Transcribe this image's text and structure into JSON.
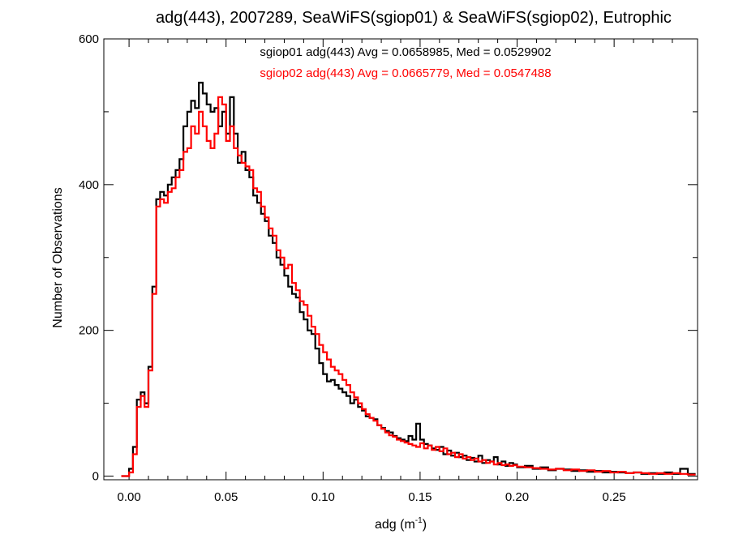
{
  "chart_data": {
    "type": "histogram-step",
    "title": "adg(443), 2007289, SeaWiFS(sgiop01) & SeaWiFS(sgiop02), Eutrophic",
    "xlabel": "adg (m",
    "xlabel_sup": "-1",
    "xlabel_close": ")",
    "ylabel": "Number of Observations",
    "xlim": [
      -0.013,
      0.293
    ],
    "ylim": [
      -5,
      600
    ],
    "xticks": [
      0.0,
      0.05,
      0.1,
      0.15,
      0.2,
      0.25
    ],
    "xtick_labels": [
      "0.00",
      "0.05",
      "0.10",
      "0.15",
      "0.20",
      "0.25"
    ],
    "yticks": [
      0,
      200,
      400,
      600
    ],
    "ytick_labels": [
      "0",
      "200",
      "400",
      "600"
    ],
    "grid": false,
    "legend_placement": "top-center",
    "series": [
      {
        "name": "sgiop01",
        "color": "#000000",
        "legend_text": "sgiop01 adg(443) Avg = 0.0658985, Med = 0.0529902",
        "avg": 0.0658985,
        "median": 0.0529902,
        "points": [
          [
            -0.004,
            0
          ],
          [
            0.0,
            10
          ],
          [
            0.002,
            40
          ],
          [
            0.004,
            105
          ],
          [
            0.006,
            115
          ],
          [
            0.008,
            100
          ],
          [
            0.01,
            150
          ],
          [
            0.012,
            260
          ],
          [
            0.014,
            380
          ],
          [
            0.016,
            390
          ],
          [
            0.018,
            385
          ],
          [
            0.02,
            400
          ],
          [
            0.022,
            410
          ],
          [
            0.024,
            420
          ],
          [
            0.026,
            435
          ],
          [
            0.028,
            480
          ],
          [
            0.03,
            500
          ],
          [
            0.032,
            515
          ],
          [
            0.034,
            505
          ],
          [
            0.036,
            540
          ],
          [
            0.038,
            525
          ],
          [
            0.04,
            510
          ],
          [
            0.042,
            500
          ],
          [
            0.044,
            505
          ],
          [
            0.046,
            480
          ],
          [
            0.048,
            500
          ],
          [
            0.05,
            470
          ],
          [
            0.052,
            520
          ],
          [
            0.054,
            470
          ],
          [
            0.056,
            430
          ],
          [
            0.058,
            445
          ],
          [
            0.06,
            420
          ],
          [
            0.062,
            410
          ],
          [
            0.064,
            385
          ],
          [
            0.066,
            375
          ],
          [
            0.068,
            360
          ],
          [
            0.07,
            350
          ],
          [
            0.072,
            330
          ],
          [
            0.074,
            320
          ],
          [
            0.076,
            300
          ],
          [
            0.078,
            290
          ],
          [
            0.08,
            275
          ],
          [
            0.082,
            260
          ],
          [
            0.084,
            250
          ],
          [
            0.086,
            245
          ],
          [
            0.088,
            225
          ],
          [
            0.09,
            215
          ],
          [
            0.092,
            200
          ],
          [
            0.094,
            195
          ],
          [
            0.096,
            175
          ],
          [
            0.098,
            155
          ],
          [
            0.1,
            140
          ],
          [
            0.102,
            130
          ],
          [
            0.104,
            132
          ],
          [
            0.106,
            125
          ],
          [
            0.108,
            120
          ],
          [
            0.11,
            115
          ],
          [
            0.112,
            110
          ],
          [
            0.114,
            100
          ],
          [
            0.116,
            105
          ],
          [
            0.118,
            95
          ],
          [
            0.12,
            90
          ],
          [
            0.122,
            82
          ],
          [
            0.124,
            80
          ],
          [
            0.126,
            78
          ],
          [
            0.128,
            70
          ],
          [
            0.13,
            66
          ],
          [
            0.132,
            62
          ],
          [
            0.134,
            60
          ],
          [
            0.136,
            55
          ],
          [
            0.138,
            52
          ],
          [
            0.14,
            50
          ],
          [
            0.142,
            48
          ],
          [
            0.144,
            55
          ],
          [
            0.146,
            50
          ],
          [
            0.148,
            72
          ],
          [
            0.15,
            50
          ],
          [
            0.152,
            44
          ],
          [
            0.154,
            42
          ],
          [
            0.156,
            38
          ],
          [
            0.158,
            36
          ],
          [
            0.16,
            40
          ],
          [
            0.162,
            30
          ],
          [
            0.164,
            35
          ],
          [
            0.166,
            28
          ],
          [
            0.168,
            32
          ],
          [
            0.17,
            26
          ],
          [
            0.172,
            28
          ],
          [
            0.174,
            22
          ],
          [
            0.176,
            25
          ],
          [
            0.178,
            20
          ],
          [
            0.18,
            28
          ],
          [
            0.182,
            18
          ],
          [
            0.184,
            22
          ],
          [
            0.186,
            20
          ],
          [
            0.188,
            26
          ],
          [
            0.19,
            16
          ],
          [
            0.192,
            20
          ],
          [
            0.194,
            14
          ],
          [
            0.196,
            18
          ],
          [
            0.198,
            16
          ],
          [
            0.2,
            12
          ],
          [
            0.204,
            14
          ],
          [
            0.208,
            10
          ],
          [
            0.212,
            12
          ],
          [
            0.216,
            8
          ],
          [
            0.22,
            10
          ],
          [
            0.224,
            9
          ],
          [
            0.228,
            7
          ],
          [
            0.232,
            8
          ],
          [
            0.236,
            6
          ],
          [
            0.24,
            7
          ],
          [
            0.244,
            5
          ],
          [
            0.248,
            6
          ],
          [
            0.252,
            5
          ],
          [
            0.256,
            4
          ],
          [
            0.26,
            5
          ],
          [
            0.264,
            3
          ],
          [
            0.268,
            4
          ],
          [
            0.272,
            3
          ],
          [
            0.276,
            5
          ],
          [
            0.28,
            3
          ],
          [
            0.284,
            10
          ],
          [
            0.288,
            3
          ]
        ]
      },
      {
        "name": "sgiop02",
        "color": "#ff0000",
        "legend_text": "sgiop02 adg(443) Avg = 0.0665779, Med = 0.0547488",
        "avg": 0.0665779,
        "median": 0.0547488,
        "points": [
          [
            -0.004,
            0
          ],
          [
            0.0,
            5
          ],
          [
            0.002,
            30
          ],
          [
            0.004,
            95
          ],
          [
            0.006,
            110
          ],
          [
            0.008,
            95
          ],
          [
            0.01,
            145
          ],
          [
            0.012,
            250
          ],
          [
            0.014,
            370
          ],
          [
            0.016,
            380
          ],
          [
            0.018,
            375
          ],
          [
            0.02,
            390
          ],
          [
            0.022,
            395
          ],
          [
            0.024,
            410
          ],
          [
            0.026,
            420
          ],
          [
            0.028,
            445
          ],
          [
            0.03,
            450
          ],
          [
            0.032,
            480
          ],
          [
            0.034,
            470
          ],
          [
            0.036,
            500
          ],
          [
            0.038,
            480
          ],
          [
            0.04,
            460
          ],
          [
            0.042,
            450
          ],
          [
            0.044,
            470
          ],
          [
            0.046,
            520
          ],
          [
            0.048,
            510
          ],
          [
            0.05,
            460
          ],
          [
            0.052,
            480
          ],
          [
            0.054,
            450
          ],
          [
            0.056,
            440
          ],
          [
            0.058,
            430
          ],
          [
            0.06,
            425
          ],
          [
            0.062,
            420
          ],
          [
            0.064,
            395
          ],
          [
            0.066,
            390
          ],
          [
            0.068,
            370
          ],
          [
            0.07,
            355
          ],
          [
            0.072,
            340
          ],
          [
            0.074,
            330
          ],
          [
            0.076,
            310
          ],
          [
            0.078,
            300
          ],
          [
            0.08,
            285
          ],
          [
            0.082,
            290
          ],
          [
            0.084,
            265
          ],
          [
            0.086,
            255
          ],
          [
            0.088,
            240
          ],
          [
            0.09,
            235
          ],
          [
            0.092,
            220
          ],
          [
            0.094,
            205
          ],
          [
            0.096,
            195
          ],
          [
            0.098,
            180
          ],
          [
            0.1,
            170
          ],
          [
            0.102,
            160
          ],
          [
            0.104,
            150
          ],
          [
            0.106,
            145
          ],
          [
            0.108,
            140
          ],
          [
            0.11,
            132
          ],
          [
            0.112,
            125
          ],
          [
            0.114,
            115
          ],
          [
            0.116,
            108
          ],
          [
            0.118,
            100
          ],
          [
            0.12,
            92
          ],
          [
            0.122,
            85
          ],
          [
            0.124,
            80
          ],
          [
            0.126,
            76
          ],
          [
            0.128,
            70
          ],
          [
            0.13,
            65
          ],
          [
            0.132,
            60
          ],
          [
            0.134,
            56
          ],
          [
            0.136,
            54
          ],
          [
            0.138,
            50
          ],
          [
            0.14,
            48
          ],
          [
            0.142,
            46
          ],
          [
            0.144,
            44
          ],
          [
            0.146,
            42
          ],
          [
            0.148,
            40
          ],
          [
            0.15,
            45
          ],
          [
            0.152,
            38
          ],
          [
            0.154,
            42
          ],
          [
            0.156,
            36
          ],
          [
            0.158,
            40
          ],
          [
            0.16,
            34
          ],
          [
            0.162,
            38
          ],
          [
            0.164,
            30
          ],
          [
            0.166,
            32
          ],
          [
            0.168,
            26
          ],
          [
            0.17,
            30
          ],
          [
            0.172,
            24
          ],
          [
            0.174,
            26
          ],
          [
            0.176,
            22
          ],
          [
            0.178,
            24
          ],
          [
            0.18,
            20
          ],
          [
            0.182,
            22
          ],
          [
            0.184,
            18
          ],
          [
            0.186,
            20
          ],
          [
            0.188,
            16
          ],
          [
            0.19,
            18
          ],
          [
            0.192,
            15
          ],
          [
            0.194,
            16
          ],
          [
            0.196,
            14
          ],
          [
            0.198,
            15
          ],
          [
            0.2,
            13
          ],
          [
            0.204,
            12
          ],
          [
            0.208,
            11
          ],
          [
            0.212,
            10
          ],
          [
            0.216,
            9
          ],
          [
            0.22,
            10
          ],
          [
            0.224,
            8
          ],
          [
            0.228,
            9
          ],
          [
            0.232,
            7
          ],
          [
            0.236,
            8
          ],
          [
            0.24,
            6
          ],
          [
            0.244,
            7
          ],
          [
            0.248,
            5
          ],
          [
            0.252,
            6
          ],
          [
            0.256,
            4
          ],
          [
            0.26,
            5
          ],
          [
            0.264,
            4
          ],
          [
            0.268,
            3
          ],
          [
            0.272,
            4
          ],
          [
            0.276,
            3
          ],
          [
            0.28,
            4
          ],
          [
            0.284,
            3
          ],
          [
            0.288,
            2
          ]
        ]
      }
    ]
  }
}
